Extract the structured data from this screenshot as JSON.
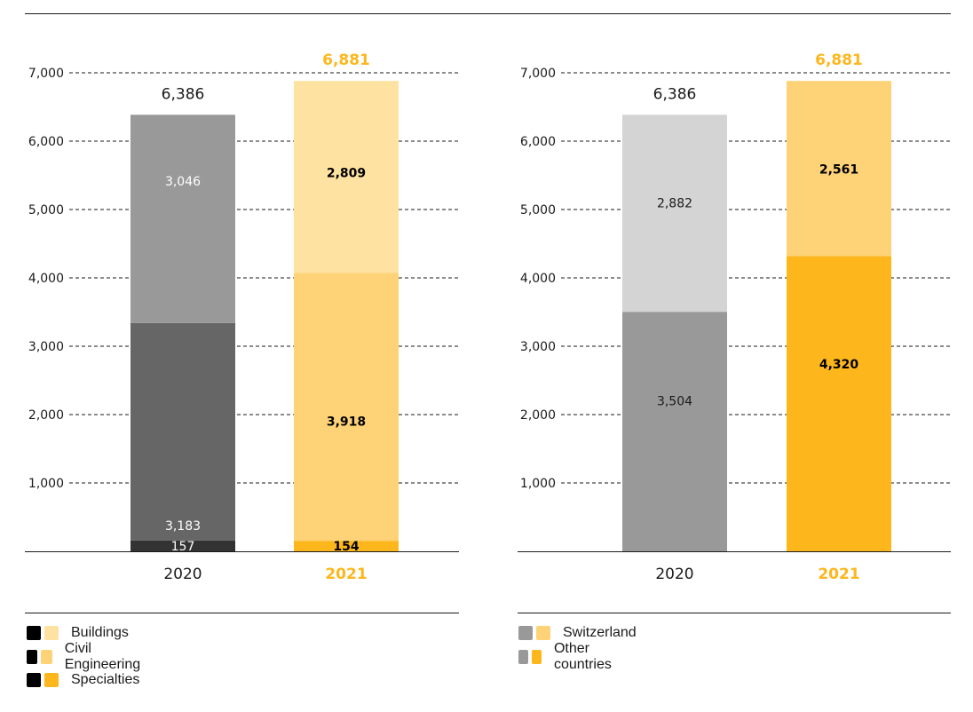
{
  "chart_data": [
    {
      "type": "bar",
      "stacked": true,
      "title": "",
      "xlabel": "",
      "ylabel": "",
      "ylim": [
        0,
        7000
      ],
      "yticks": [
        1000,
        2000,
        3000,
        4000,
        5000,
        6000,
        7000
      ],
      "ytick_labels": [
        "1,000",
        "2,000",
        "3,000",
        "4,000",
        "5,000",
        "6,000",
        "7,000"
      ],
      "grid": true,
      "categories": [
        "2020",
        "2021"
      ],
      "totals": [
        6386,
        6881
      ],
      "total_labels": [
        "6,386",
        "6,881"
      ],
      "series": [
        {
          "name": "Specialties",
          "values": [
            157,
            154
          ],
          "labels": [
            "157",
            "154"
          ],
          "colors": [
            "#333333",
            "#FDB71D"
          ],
          "label_colors": [
            "#ffffff",
            "#000000"
          ]
        },
        {
          "name": "Civil Engineering",
          "values": [
            3183,
            3918
          ],
          "labels": [
            "3,183",
            "3,918"
          ],
          "colors": [
            "#666666",
            "#FED377"
          ],
          "label_colors": [
            "#ffffff",
            "#000000"
          ]
        },
        {
          "name": "Buildings",
          "values": [
            3046,
            2809
          ],
          "labels": [
            "3,046",
            "2,809"
          ],
          "colors": [
            "#999999",
            "#FEE2A2"
          ],
          "label_colors": [
            "#ffffff",
            "#000000"
          ]
        }
      ],
      "legend": {
        "placement": "bottom-left",
        "items": [
          {
            "label": "Buildings",
            "colors": [
              "#000000",
              "#FEE2A2"
            ]
          },
          {
            "label": "Civil Engineering",
            "colors": [
              "#000000",
              "#FED377"
            ]
          },
          {
            "label": "Specialties",
            "colors": [
              "#000000",
              "#FDB71D"
            ]
          }
        ]
      }
    },
    {
      "type": "bar",
      "stacked": true,
      "title": "",
      "xlabel": "",
      "ylabel": "",
      "ylim": [
        0,
        7000
      ],
      "yticks": [
        1000,
        2000,
        3000,
        4000,
        5000,
        6000,
        7000
      ],
      "ytick_labels": [
        "1,000",
        "2,000",
        "3,000",
        "4,000",
        "5,000",
        "6,000",
        "7,000"
      ],
      "grid": true,
      "categories": [
        "2020",
        "2021"
      ],
      "totals": [
        6386,
        6881
      ],
      "total_labels": [
        "6,386",
        "6,881"
      ],
      "series": [
        {
          "name": "Other countries",
          "values": [
            3504,
            4320
          ],
          "labels": [
            "3,504",
            "4,320"
          ],
          "colors": [
            "#999999",
            "#FDB71D"
          ],
          "label_colors": [
            "#1a1a1a",
            "#000000"
          ]
        },
        {
          "name": "Switzerland",
          "values": [
            2882,
            2561
          ],
          "labels": [
            "2,882",
            "2,561"
          ],
          "colors": [
            "#D4D4D4",
            "#FED377"
          ],
          "label_colors": [
            "#1a1a1a",
            "#000000"
          ]
        }
      ],
      "legend": {
        "placement": "bottom-left",
        "items": [
          {
            "label": "Switzerland",
            "colors": [
              "#999999",
              "#FED377"
            ]
          },
          {
            "label": "Other countries",
            "colors": [
              "#999999",
              "#FDB71D"
            ]
          }
        ]
      }
    }
  ],
  "colors": {
    "highlight_year": "#FDB71D",
    "text": "#1a1a1a",
    "grid": "#1a1a1a"
  },
  "highlight_category": "2021"
}
